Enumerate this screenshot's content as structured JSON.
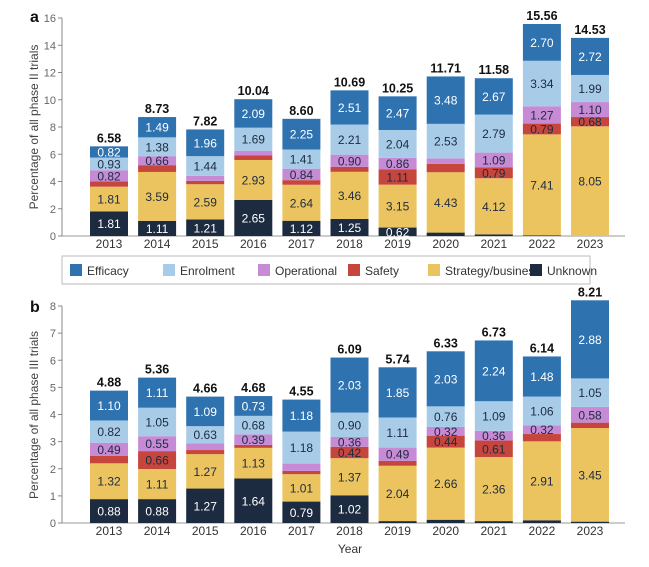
{
  "chart_data": [
    {
      "type": "bar",
      "stacked": true,
      "panel_label": "a",
      "ylabel": "Percentage of all phase II trials",
      "xlabel": "",
      "ylim": [
        0,
        16
      ],
      "yticks": [
        0,
        2,
        4,
        6,
        8,
        10,
        12,
        14,
        16
      ],
      "categories": [
        "2013",
        "2014",
        "2015",
        "2016",
        "2017",
        "2018",
        "2019",
        "2020",
        "2021",
        "2022",
        "2023"
      ],
      "totals": [
        "6.58",
        "8.73",
        "7.82",
        "10.04",
        "8.60",
        "10.69",
        "10.25",
        "11.71",
        "11.58",
        "15.56",
        "14.53"
      ],
      "series": [
        {
          "name": "Unknown",
          "values": [
            1.81,
            1.11,
            1.21,
            2.65,
            1.12,
            1.25,
            0.62,
            0.25,
            0.12,
            0.05,
            0.0
          ],
          "labels": [
            "1.81",
            "1.11",
            "1.21",
            "2.65",
            "1.12",
            "1.25",
            "0.62",
            null,
            null,
            null,
            null
          ]
        },
        {
          "name": "Strategy/business",
          "values": [
            1.81,
            3.59,
            2.59,
            2.93,
            2.64,
            3.46,
            3.15,
            4.43,
            4.12,
            7.41,
            8.05
          ],
          "labels": [
            "1.81",
            "3.59",
            "2.59",
            "2.93",
            "2.64",
            "3.46",
            "3.15",
            "4.43",
            "4.12",
            "7.41",
            "8.05"
          ]
        },
        {
          "name": "Safety",
          "values": [
            0.39,
            0.5,
            0.25,
            0.35,
            0.34,
            0.36,
            1.11,
            0.62,
            0.79,
            0.79,
            0.68
          ],
          "labels": [
            null,
            null,
            null,
            null,
            null,
            null,
            "1.11",
            null,
            "0.79",
            "0.79",
            "0.68"
          ]
        },
        {
          "name": "Operational",
          "values": [
            0.82,
            0.66,
            0.37,
            0.33,
            0.84,
            0.9,
            0.86,
            0.4,
            1.09,
            1.27,
            1.1
          ],
          "labels": [
            "0.82",
            "0.66",
            null,
            null,
            "0.84",
            "0.90",
            "0.86",
            null,
            "1.09",
            "1.27",
            "1.10"
          ]
        },
        {
          "name": "Enrolment",
          "values": [
            0.93,
            1.38,
            1.44,
            1.69,
            1.41,
            2.21,
            2.04,
            2.53,
            2.79,
            3.34,
            1.99
          ],
          "labels": [
            "0.93",
            "1.38",
            "1.44",
            "1.69",
            "1.41",
            "2.21",
            "2.04",
            "2.53",
            "2.79",
            "3.34",
            "1.99"
          ]
        },
        {
          "name": "Efficacy",
          "values": [
            0.82,
            1.49,
            1.96,
            2.09,
            2.25,
            2.51,
            2.47,
            3.48,
            2.67,
            2.7,
            2.72
          ],
          "labels": [
            "0.82",
            "1.49",
            "1.96",
            "2.09",
            "2.25",
            "2.51",
            "2.47",
            "3.48",
            "2.67",
            "2.70",
            "2.72"
          ]
        }
      ]
    },
    {
      "type": "bar",
      "stacked": true,
      "panel_label": "b",
      "ylabel": "Percentage of all phase III trials",
      "xlabel": "Year",
      "ylim": [
        0,
        8
      ],
      "yticks": [
        0,
        1,
        2,
        3,
        4,
        5,
        6,
        7,
        8
      ],
      "categories": [
        "2013",
        "2014",
        "2015",
        "2016",
        "2017",
        "2018",
        "2019",
        "2020",
        "2021",
        "2022",
        "2023"
      ],
      "totals": [
        "4.88",
        "5.36",
        "4.66",
        "4.68",
        "4.55",
        "6.09",
        "5.74",
        "6.33",
        "6.73",
        "6.14",
        "8.21"
      ],
      "series": [
        {
          "name": "Unknown",
          "values": [
            0.88,
            0.88,
            1.27,
            1.64,
            0.79,
            1.02,
            0.07,
            0.12,
            0.07,
            0.1,
            0.05
          ],
          "labels": [
            "0.88",
            "0.88",
            "1.27",
            "1.64",
            "0.79",
            "1.02",
            null,
            null,
            null,
            null,
            null
          ]
        },
        {
          "name": "Strategy/business",
          "values": [
            1.32,
            1.11,
            1.27,
            1.13,
            1.01,
            1.37,
            2.04,
            2.66,
            2.36,
            2.91,
            3.45
          ],
          "labels": [
            "1.32",
            "1.11",
            "1.27",
            "1.13",
            "1.01",
            "1.37",
            "2.04",
            "2.66",
            "2.36",
            "2.91",
            "3.45"
          ]
        },
        {
          "name": "Safety",
          "values": [
            0.27,
            0.66,
            0.15,
            0.11,
            0.12,
            0.42,
            0.18,
            0.44,
            0.61,
            0.27,
            0.2
          ],
          "labels": [
            null,
            "0.66",
            null,
            null,
            null,
            "0.42",
            null,
            "0.44",
            "0.61",
            null,
            null
          ]
        },
        {
          "name": "Operational",
          "values": [
            0.49,
            0.55,
            0.25,
            0.39,
            0.27,
            0.36,
            0.49,
            0.32,
            0.36,
            0.32,
            0.58
          ],
          "labels": [
            "0.49",
            "0.55",
            null,
            "0.39",
            null,
            "0.36",
            "0.49",
            "0.32",
            "0.36",
            "0.32",
            "0.58"
          ]
        },
        {
          "name": "Enrolment",
          "values": [
            0.82,
            1.05,
            0.63,
            0.68,
            1.18,
            0.9,
            1.11,
            0.76,
            1.09,
            1.06,
            1.05
          ],
          "labels": [
            "0.82",
            "1.05",
            "0.63",
            "0.68",
            "1.18",
            "0.90",
            "1.11",
            "0.76",
            "1.09",
            "1.06",
            "1.05"
          ]
        },
        {
          "name": "Efficacy",
          "values": [
            1.1,
            1.11,
            1.09,
            0.73,
            1.18,
            2.03,
            1.85,
            2.03,
            2.24,
            1.48,
            2.88
          ],
          "labels": [
            "1.10",
            "1.11",
            "1.09",
            "0.73",
            "1.18",
            "2.03",
            "1.85",
            "2.03",
            "2.24",
            "1.48",
            "2.88"
          ]
        }
      ]
    }
  ],
  "legend": {
    "position": "between-panels",
    "items": [
      {
        "name": "Efficacy",
        "color": "#2f72b0"
      },
      {
        "name": "Enrolment",
        "color": "#a8cce8"
      },
      {
        "name": "Operational",
        "color": "#c68bd4"
      },
      {
        "name": "Safety",
        "color": "#c6463e"
      },
      {
        "name": "Strategy/business",
        "color": "#ecc45f"
      },
      {
        "name": "Unknown",
        "color": "#1c2b40"
      }
    ]
  },
  "series_colors": {
    "Unknown": "#1c2b40",
    "Strategy/business": "#ecc45f",
    "Safety": "#c6463e",
    "Operational": "#c68bd4",
    "Enrolment": "#a8cce8",
    "Efficacy": "#2f72b0"
  },
  "label_text_colors": {
    "Unknown": "#ffffff",
    "Efficacy": "#ffffff",
    "other": "#1c2b40"
  }
}
